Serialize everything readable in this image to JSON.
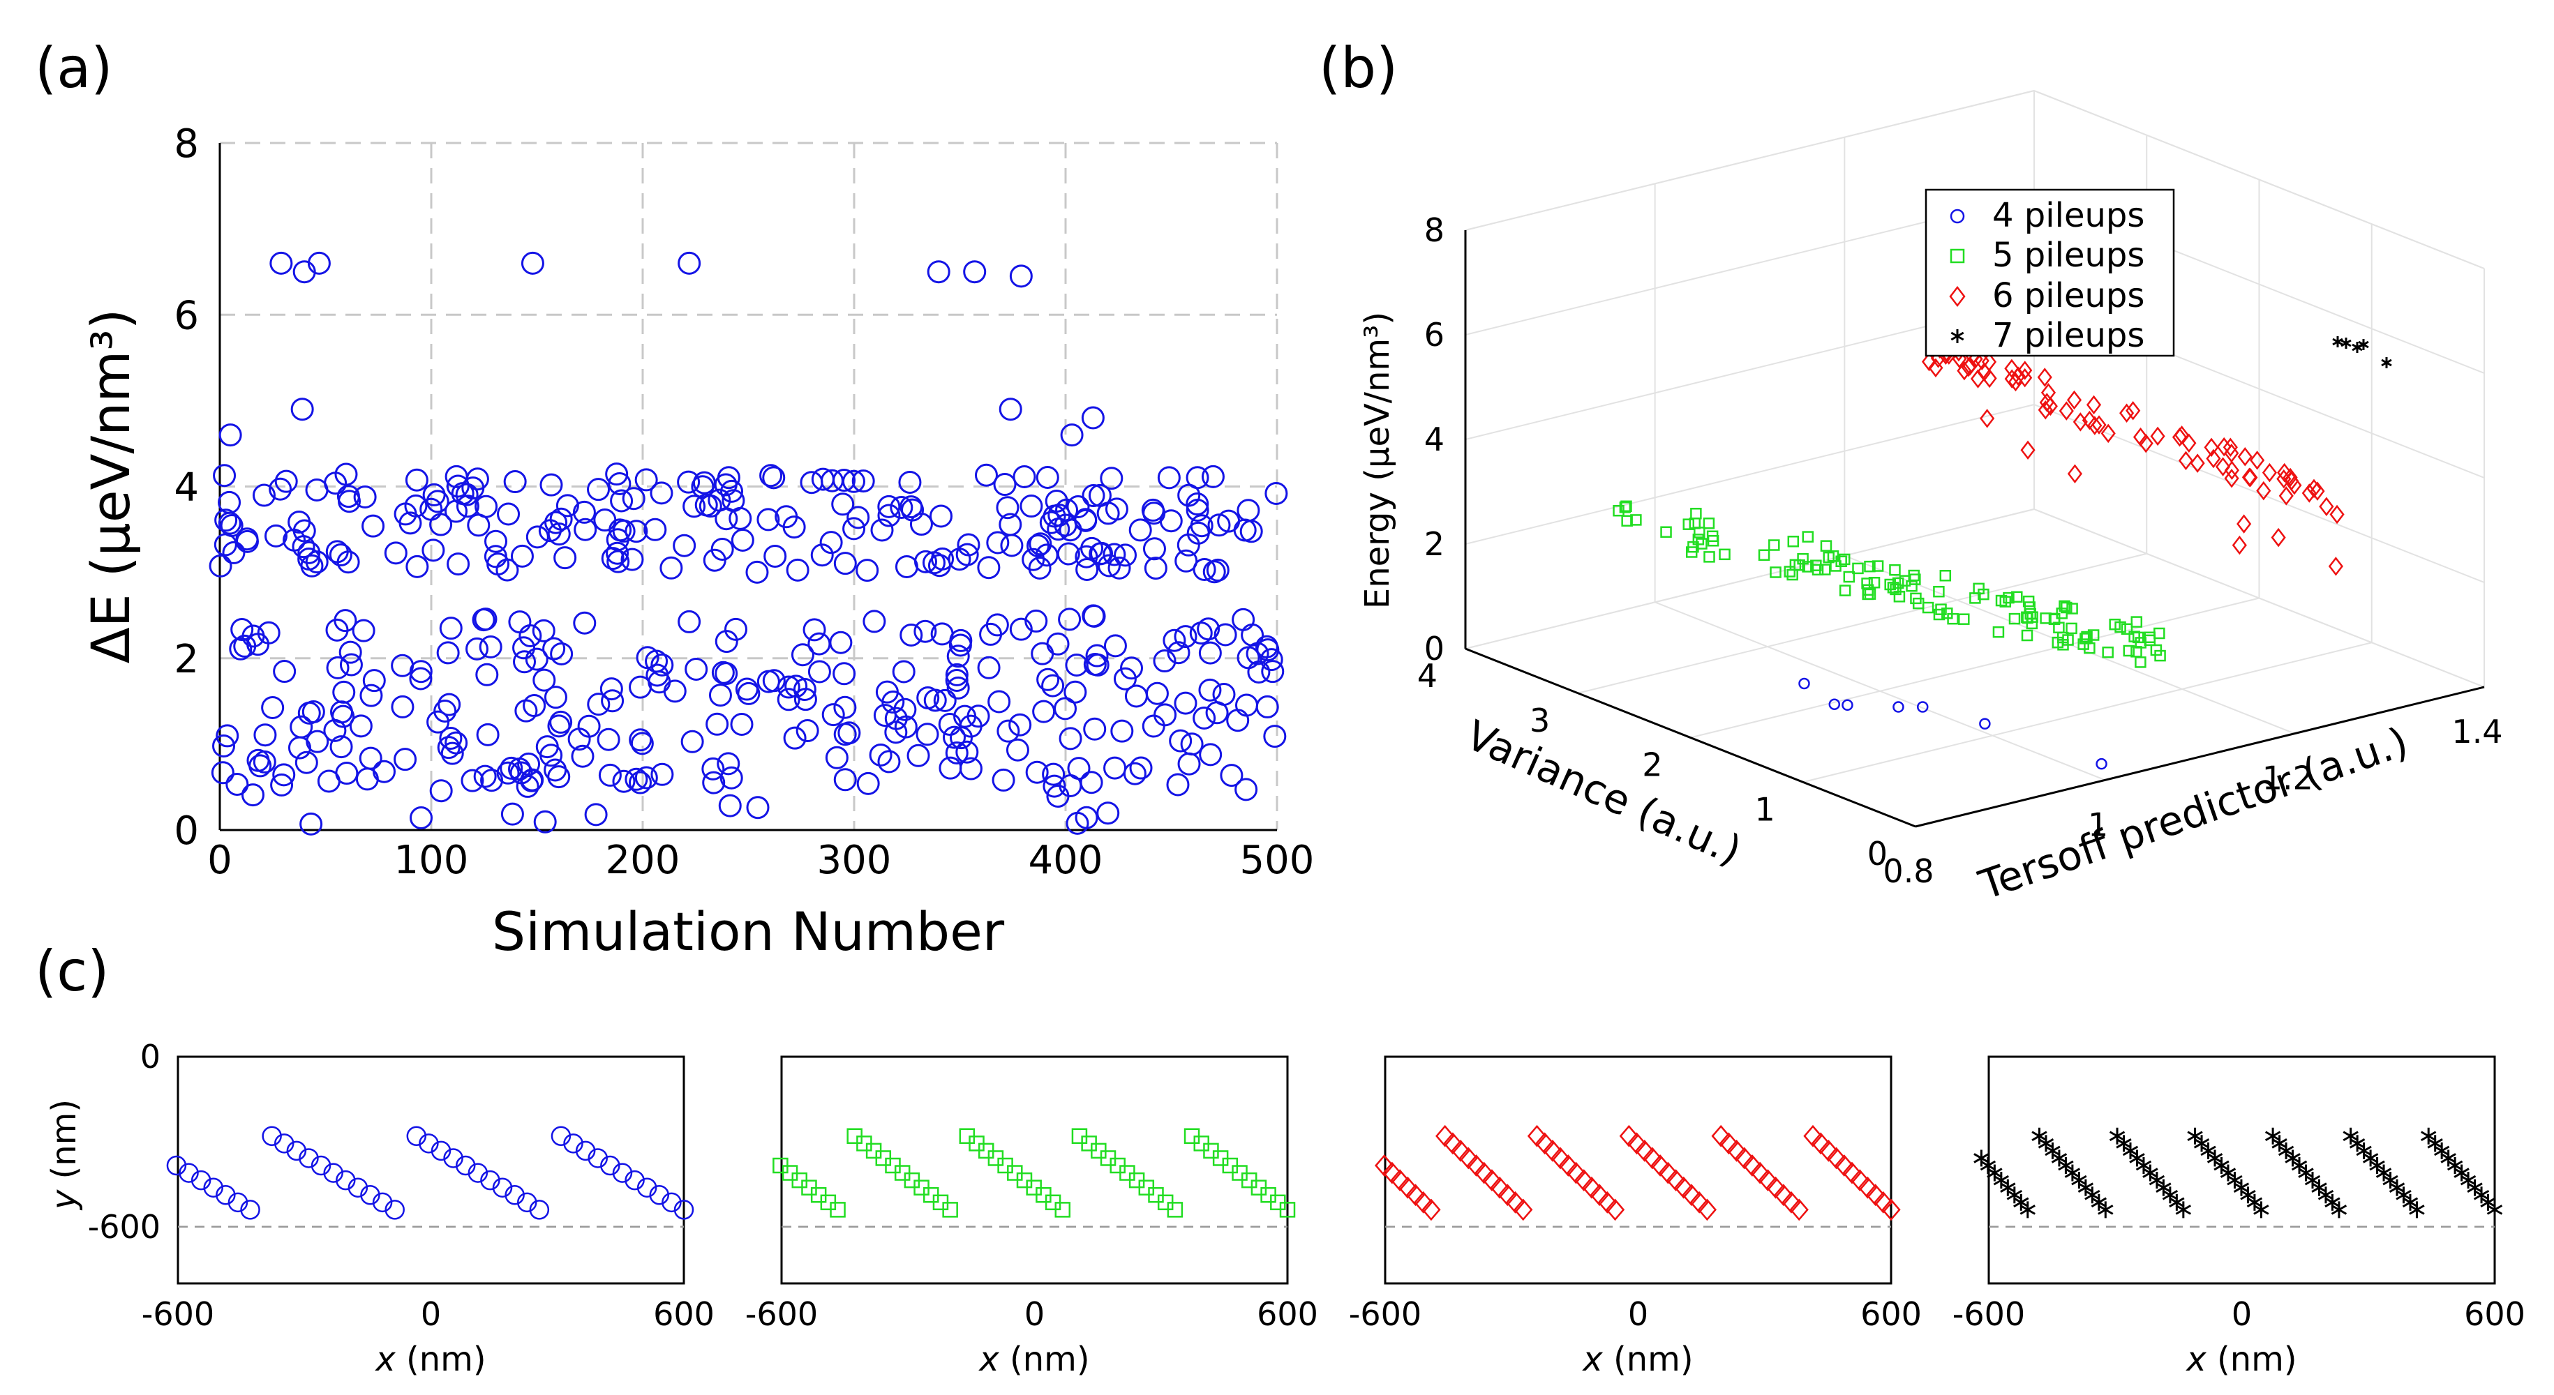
{
  "panel_labels": [
    "(a)",
    "(b)",
    "(c)"
  ],
  "chart_data": [
    {
      "type": "scatter",
      "panel": "(a)",
      "title": "",
      "xlabel": "Simulation Number",
      "ylabel": "ΔE (μeV/nm³)",
      "xlim": [
        0,
        500
      ],
      "ylim": [
        0,
        8
      ],
      "xticks": [
        0,
        100,
        200,
        300,
        400,
        500
      ],
      "yticks": [
        0,
        2,
        4,
        6,
        8
      ],
      "grid": true,
      "marker": "circle",
      "color": "#1414e6",
      "high_points": [
        [
          29,
          6.6
        ],
        [
          40,
          6.5
        ],
        [
          47,
          6.6
        ],
        [
          148,
          6.6
        ],
        [
          222,
          6.6
        ],
        [
          340,
          6.5
        ],
        [
          357,
          6.5
        ],
        [
          379,
          6.45
        ],
        [
          39,
          4.9
        ],
        [
          374,
          4.9
        ],
        [
          403,
          4.6
        ],
        [
          413,
          4.8
        ],
        [
          5,
          4.6
        ]
      ],
      "n_points": 500,
      "note": "remaining 487 points cluster in bands 3.0–4.2 and 0–2.5"
    },
    {
      "type": "scatter3d",
      "panel": "(b)",
      "xlabel": "Tersoff predictor (a.u.)",
      "ylabel": "Variance (a.u.)",
      "zlabel": "Energy (μeV/nm³)",
      "xlim": [
        0.8,
        1.4
      ],
      "ylim": [
        0,
        4
      ],
      "zlim": [
        0,
        8
      ],
      "xticks": [
        "0.8",
        "1",
        "1.2",
        "1.4"
      ],
      "yticks": [
        "0",
        "1",
        "2",
        "3",
        "4"
      ],
      "zticks": [
        "0",
        "2",
        "4",
        "6",
        "8"
      ],
      "legend_position": "top-right",
      "series": [
        {
          "name": "4 pileups",
          "marker": "circle",
          "color": "#1414e6",
          "count": 7
        },
        {
          "name": "5 pileups",
          "marker": "square",
          "color": "#22dd22",
          "count": 120
        },
        {
          "name": "6 pileups",
          "marker": "diamond",
          "color": "#ee1111",
          "count": 80
        },
        {
          "name": "7 pileups",
          "marker": "asterisk",
          "color": "#000000",
          "count": 5
        }
      ]
    },
    {
      "type": "scatter",
      "panel": "(c)",
      "xlabel": "x (nm)",
      "ylabel": "y (nm)",
      "xlim": [
        -600,
        600
      ],
      "ylim": [
        -800,
        0
      ],
      "xticks": [
        "-600",
        "0",
        "600"
      ],
      "yticks": [
        "0",
        "-600"
      ],
      "reference_line_y": -600,
      "subplots": [
        {
          "name": "4 pileups",
          "marker": "circle",
          "color": "#1414e6",
          "pileups": 4
        },
        {
          "name": "5 pileups",
          "marker": "square",
          "color": "#22dd22",
          "pileups": 5
        },
        {
          "name": "6 pileups",
          "marker": "diamond",
          "color": "#ee1111",
          "pileups": 6
        },
        {
          "name": "7 pileups",
          "marker": "asterisk",
          "color": "#000000",
          "pileups": 7
        }
      ]
    }
  ]
}
